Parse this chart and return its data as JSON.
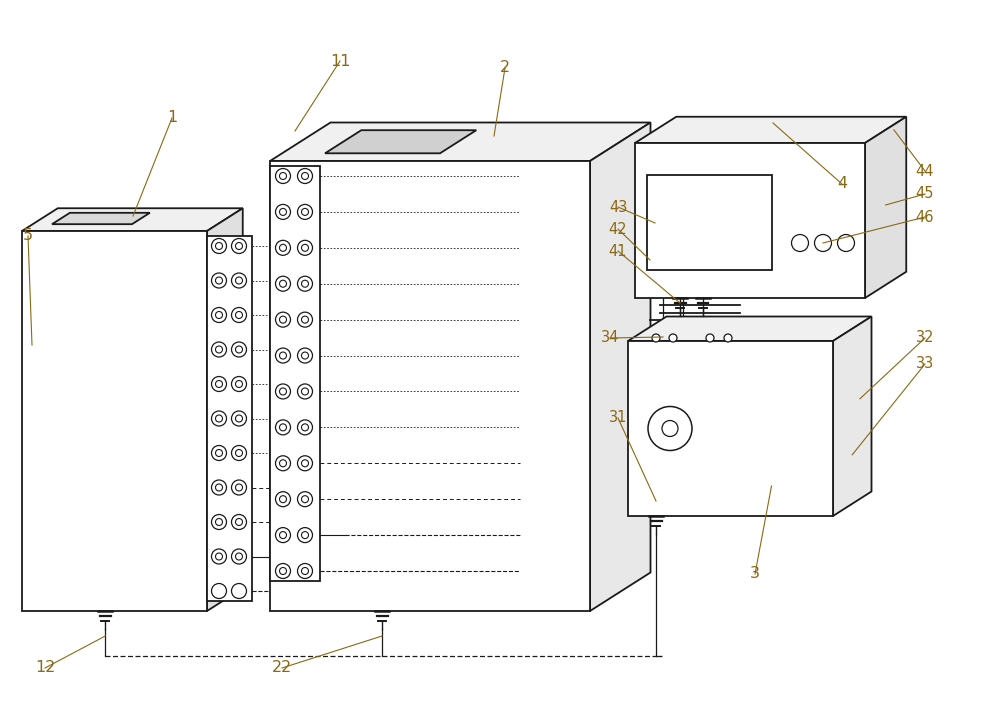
{
  "background_color": "#ffffff",
  "line_color": "#1a1a1a",
  "label_color": "#8B6914",
  "fig_width": 10.0,
  "fig_height": 7.26,
  "lw": 1.3
}
